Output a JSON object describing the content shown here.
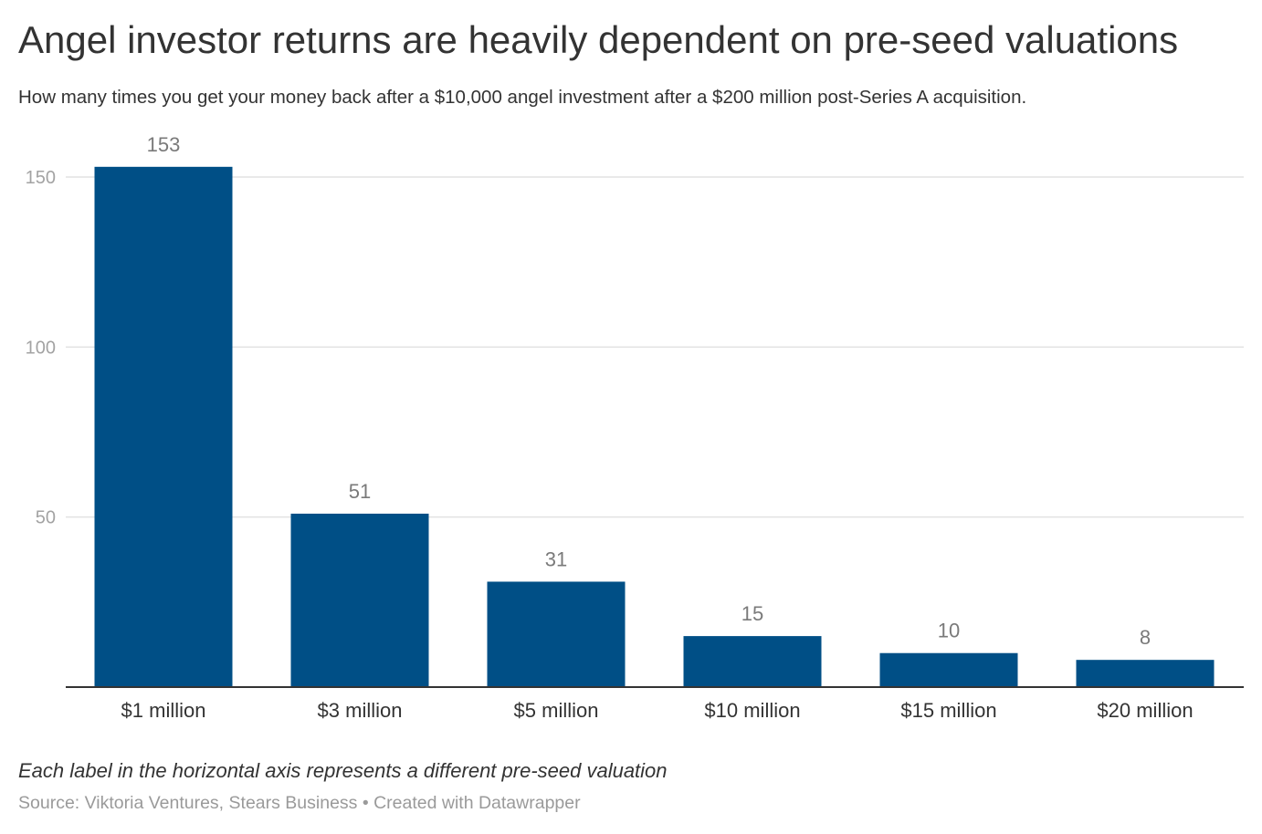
{
  "header": {
    "title": "Angel investor returns are heavily dependent on pre-seed valuations",
    "subtitle": "How many times you get your money back after a $10,000 angel investment after a $200 million post-Series A acquisition."
  },
  "footer": {
    "note": "Each label in the horizontal axis represents a different pre-seed valuation",
    "source": "Source: Viktoria Ventures, Stears Business • Created with Datawrapper"
  },
  "colors": {
    "bar": "#004f86",
    "grid": "#e2e2e2",
    "axis_line": "#333333",
    "tick_label": "#a3a3a3",
    "value_label": "#7a7a7a",
    "category_label": "#333333"
  },
  "chart_data": {
    "type": "bar",
    "title": "Angel investor returns are heavily dependent on pre-seed valuations",
    "subtitle": "How many times you get your money back after a $10,000 angel investment after a $200 million post-Series A acquisition.",
    "categories": [
      "$1 million",
      "$3 million",
      "$5 million",
      "$10 million",
      "$15 million",
      "$20 million"
    ],
    "values": [
      153,
      51,
      31,
      15,
      10,
      8
    ],
    "value_labels": [
      "153",
      "51",
      "31",
      "15",
      "10",
      "8"
    ],
    "yticks": [
      50,
      100,
      150
    ],
    "ytick_labels": [
      "50",
      "100",
      "150"
    ],
    "ylim": [
      0,
      150
    ],
    "grid": true,
    "legend": "none",
    "xlabel": "",
    "ylabel": ""
  }
}
